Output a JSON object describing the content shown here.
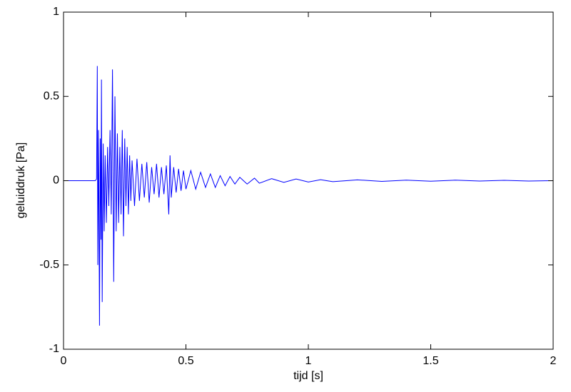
{
  "chart_data": {
    "type": "line",
    "xlabel": "tijd  [s]",
    "ylabel": "geluiddruk [Pa]",
    "xlim": [
      0,
      2
    ],
    "ylim": [
      -1,
      1
    ],
    "xticks": [
      0,
      0.5,
      1,
      1.5,
      2
    ],
    "yticks": [
      -1,
      -0.5,
      0,
      0.5,
      1
    ],
    "grid": false,
    "series": [
      {
        "color": "#0000ff",
        "x": [
          0,
          0.13,
          0.135,
          0.138,
          0.14,
          0.143,
          0.147,
          0.15,
          0.153,
          0.155,
          0.158,
          0.162,
          0.166,
          0.17,
          0.175,
          0.18,
          0.185,
          0.19,
          0.195,
          0.2,
          0.205,
          0.21,
          0.215,
          0.22,
          0.225,
          0.23,
          0.235,
          0.24,
          0.245,
          0.25,
          0.255,
          0.26,
          0.265,
          0.27,
          0.275,
          0.28,
          0.29,
          0.3,
          0.31,
          0.32,
          0.33,
          0.34,
          0.35,
          0.36,
          0.37,
          0.38,
          0.39,
          0.4,
          0.41,
          0.42,
          0.43,
          0.435,
          0.44,
          0.45,
          0.46,
          0.47,
          0.48,
          0.49,
          0.5,
          0.52,
          0.54,
          0.56,
          0.58,
          0.6,
          0.62,
          0.64,
          0.66,
          0.68,
          0.7,
          0.72,
          0.75,
          0.78,
          0.8,
          0.85,
          0.9,
          0.95,
          1.0,
          1.05,
          1.1,
          1.2,
          1.3,
          1.4,
          1.5,
          1.6,
          1.7,
          1.8,
          1.9,
          2.0
        ],
        "values": [
          0,
          0,
          0.01,
          0.68,
          -0.5,
          0.3,
          -0.86,
          0.25,
          -0.35,
          0.6,
          -0.72,
          0.22,
          -0.3,
          0.15,
          -0.25,
          0.2,
          -0.15,
          0.3,
          -0.2,
          0.66,
          -0.6,
          0.5,
          -0.3,
          0.28,
          -0.25,
          0.2,
          -0.2,
          0.3,
          -0.33,
          0.25,
          -0.15,
          0.2,
          -0.2,
          0.15,
          -0.12,
          0.12,
          -0.15,
          0.13,
          -0.12,
          0.1,
          -0.1,
          0.11,
          -0.13,
          0.08,
          -0.08,
          0.1,
          -0.1,
          0.08,
          -0.08,
          0.09,
          -0.2,
          0.15,
          -0.1,
          0.08,
          -0.07,
          0.07,
          -0.06,
          0.06,
          -0.05,
          0.06,
          -0.05,
          0.05,
          -0.04,
          0.04,
          -0.04,
          0.03,
          -0.03,
          0.025,
          -0.02,
          0.02,
          -0.02,
          0.015,
          -0.015,
          0.012,
          -0.01,
          0.01,
          -0.008,
          0.006,
          -0.006,
          0.005,
          -0.004,
          0.003,
          -0.003,
          0.003,
          -0.002,
          0.002,
          -0.002,
          0
        ]
      }
    ]
  }
}
